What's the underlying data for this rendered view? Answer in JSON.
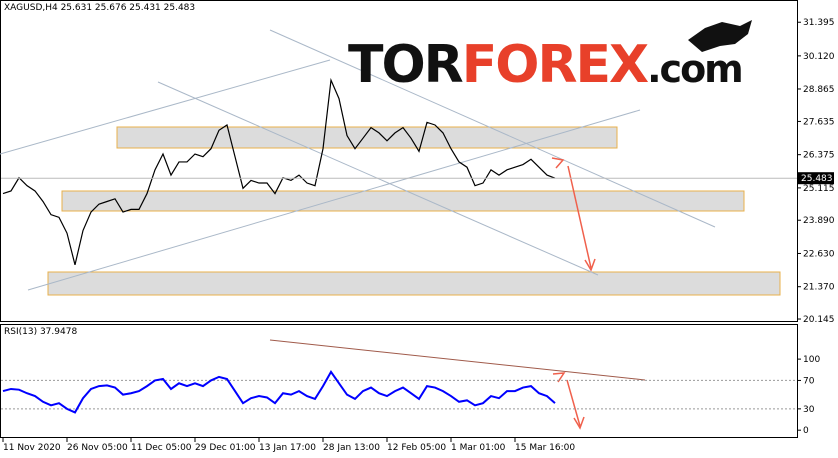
{
  "chart_data": [
    {
      "type": "line",
      "title": "XAGUSD,H4 25.631 25.676 25.431 25.483",
      "categories": [
        "11 Nov 2020",
        null,
        null,
        null,
        null,
        null,
        null,
        null,
        "26 Nov 05:00",
        null,
        null,
        null,
        null,
        null,
        null,
        null,
        "11 Dec 05:00",
        null,
        null,
        null,
        null,
        null,
        null,
        null,
        "29 Dec 01:00",
        null,
        null,
        null,
        null,
        null,
        null,
        null,
        "13 Jan 17:00",
        null,
        null,
        null,
        null,
        null,
        null,
        null,
        "28 Jan 13:00",
        null,
        null,
        null,
        null,
        null,
        null,
        null,
        "12 Feb 05:00",
        null,
        null,
        null,
        null,
        null,
        null,
        null,
        "1 Mar 01:00",
        null,
        null,
        null,
        null,
        null,
        null,
        null,
        "15 Mar 16:00",
        null,
        null,
        null,
        null,
        null
      ],
      "series": [
        {
          "name": "XAGUSD",
          "color": "#000000",
          "values": [
            24.9,
            25.0,
            25.5,
            25.2,
            25.0,
            24.6,
            24.1,
            24.0,
            23.4,
            22.2,
            23.5,
            24.2,
            24.5,
            24.6,
            24.7,
            24.2,
            24.3,
            24.3,
            24.9,
            25.8,
            26.4,
            25.6,
            26.1,
            26.1,
            26.4,
            26.3,
            26.6,
            27.3,
            27.5,
            26.3,
            25.1,
            25.4,
            25.3,
            25.3,
            24.9,
            25.5,
            25.4,
            25.6,
            25.3,
            25.2,
            26.6,
            29.2,
            28.5,
            27.1,
            26.6,
            27.0,
            27.4,
            27.2,
            26.9,
            27.2,
            27.4,
            27.0,
            26.5,
            27.6,
            27.5,
            27.2,
            26.6,
            26.1,
            25.9,
            25.2,
            25.3,
            25.8,
            25.6,
            25.8,
            25.9,
            26.0,
            26.2,
            25.9,
            25.6,
            25.483
          ]
        }
      ],
      "last_price": 25.483,
      "ylim": [
        20.07,
        32.2
      ],
      "yticks": [
        {
          "value": 20.145,
          "label": "20.145"
        },
        {
          "value": 21.37,
          "label": "21.370"
        },
        {
          "value": 22.63,
          "label": "22.630"
        },
        {
          "value": 23.89,
          "label": "23.890"
        },
        {
          "value": 25.115,
          "label": "25.115"
        },
        {
          "value": 26.375,
          "label": "26.375"
        },
        {
          "value": 27.635,
          "label": "27.635"
        },
        {
          "value": 28.865,
          "label": "28.865"
        },
        {
          "value": 30.12,
          "label": "30.120"
        },
        {
          "value": 31.395,
          "label": "31.395"
        }
      ]
    },
    {
      "type": "line",
      "title": "RSI(13) 37.9478",
      "series": [
        {
          "name": "RSI(13)",
          "color": "#0000ff",
          "values": [
            55,
            58,
            57,
            52,
            48,
            40,
            35,
            38,
            30,
            25,
            45,
            58,
            62,
            63,
            60,
            50,
            52,
            55,
            62,
            70,
            72,
            58,
            66,
            62,
            66,
            62,
            70,
            75,
            72,
            55,
            38,
            45,
            48,
            46,
            38,
            52,
            50,
            55,
            48,
            44,
            62,
            82,
            66,
            50,
            44,
            55,
            60,
            52,
            48,
            55,
            60,
            52,
            44,
            62,
            60,
            55,
            48,
            40,
            42,
            35,
            38,
            48,
            45,
            55,
            55,
            60,
            62,
            52,
            48,
            38
          ]
        }
      ],
      "ylim": [
        -11,
        148
      ],
      "yticks": [
        0,
        30,
        70,
        100
      ]
    }
  ],
  "logo": {
    "parts": [
      "TOR",
      "FOREX",
      ".com"
    ]
  }
}
